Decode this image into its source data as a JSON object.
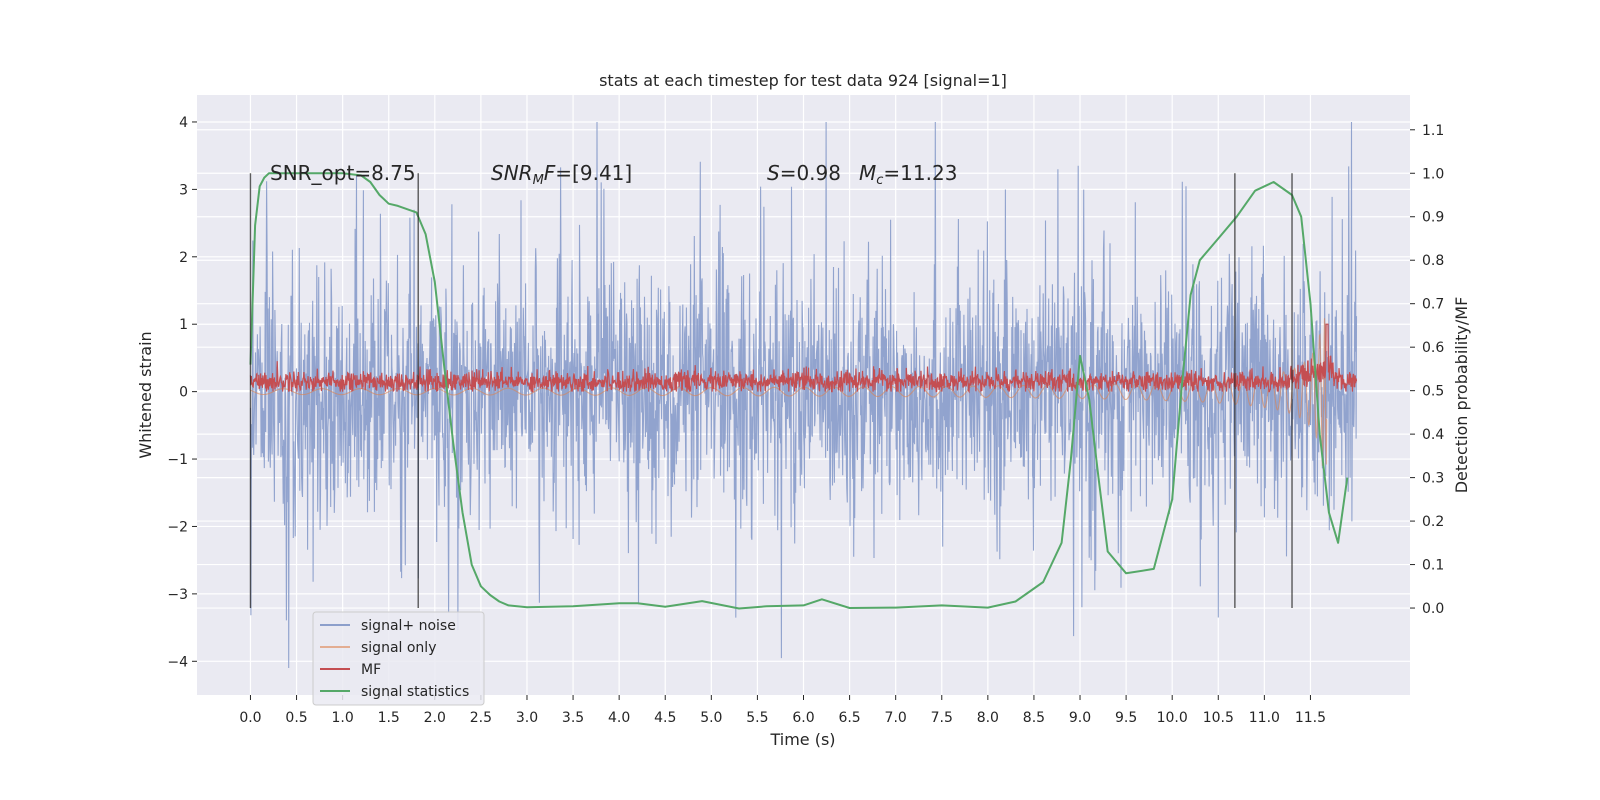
{
  "chart_data": {
    "type": "line",
    "title": "stats at each timestep for test data 924 [signal=1]",
    "xlabel": "Time (s)",
    "ylabel": "Whitened strain",
    "y2label": "Detection probability/MF",
    "xlim": [
      -0.58,
      12.58
    ],
    "ylim": [
      -4.5,
      4.4
    ],
    "y2lim": [
      -0.2,
      1.18
    ],
    "x_ticks": [
      0.0,
      0.5,
      1.0,
      1.5,
      2.0,
      2.5,
      3.0,
      3.5,
      4.0,
      4.5,
      5.0,
      5.5,
      6.0,
      6.5,
      7.0,
      7.5,
      8.0,
      8.5,
      9.0,
      9.5,
      10.0,
      10.5,
      11.0,
      11.5
    ],
    "x_tick_labels": [
      "0.0",
      "0.5",
      "1.0",
      "1.5",
      "2.0",
      "2.5",
      "3.0",
      "3.5",
      "4.0",
      "4.5",
      "5.0",
      "5.5",
      "6.0",
      "6.5",
      "7.0",
      "7.5",
      "8.0",
      "8.5",
      "9.0",
      "9.5",
      "10.0",
      "10.5",
      "11.0",
      "11.5"
    ],
    "y_ticks": [
      4,
      3,
      2,
      1,
      0,
      -1,
      -2,
      -3,
      -4
    ],
    "y_tick_labels": [
      "4",
      "3",
      "2",
      "1",
      "0",
      "−1",
      "−2",
      "−3",
      "−4"
    ],
    "y2_ticks": [
      1.1,
      1.0,
      0.9,
      0.8,
      0.7,
      0.6,
      0.5,
      0.4,
      0.3,
      0.2,
      0.1,
      0.0
    ],
    "y2_tick_labels": [
      "1.1",
      "1.0",
      "0.9",
      "0.8",
      "0.7",
      "0.6",
      "0.5",
      "0.4",
      "0.3",
      "0.2",
      "0.1",
      "0.0"
    ],
    "grid": true,
    "legend_position": "lower-left",
    "colors": {
      "signal_noise": "#8c9fcb",
      "signal_only": "#dd8452",
      "mf": "#c44e52",
      "signal_statistics": "#55a868",
      "vlines": "#262626",
      "background": "#eaeaf2"
    },
    "series": [
      {
        "key": "signal_noise",
        "name": "signal+ noise",
        "axis": "left",
        "t_range": [
          0.0,
          12.0
        ],
        "envelope": [
          2.4,
          -2.4
        ],
        "peaks_max": 4.0,
        "peaks_min": -4.1
      },
      {
        "key": "signal_only",
        "name": "signal only",
        "axis": "left",
        "t_range": [
          0.0,
          11.68
        ],
        "chirp_peak": 1.1,
        "chirp_end": 11.68
      },
      {
        "key": "mf",
        "name": "MF",
        "axis": "left",
        "t_range": [
          0.0,
          12.0
        ],
        "level": 0.15,
        "max": 1.0
      },
      {
        "key": "signal_statistics",
        "name": "signal statistics",
        "axis": "right",
        "x": [
          0.0,
          0.05,
          0.1,
          0.15,
          0.2,
          0.3,
          0.5,
          0.8,
          1.0,
          1.2,
          1.3,
          1.4,
          1.5,
          1.6,
          1.8,
          1.9,
          2.0,
          2.1,
          2.2,
          2.3,
          2.4,
          2.5,
          2.6,
          2.7,
          2.8,
          3.0,
          3.5,
          4.0,
          4.2,
          4.5,
          4.9,
          5.3,
          5.6,
          6.0,
          6.2,
          6.5,
          7.0,
          7.5,
          8.0,
          8.3,
          8.6,
          8.8,
          8.9,
          9.0,
          9.1,
          9.2,
          9.3,
          9.5,
          9.8,
          10.0,
          10.1,
          10.2,
          10.3,
          10.5,
          10.7,
          10.9,
          11.1,
          11.3,
          11.4,
          11.5,
          11.6,
          11.7,
          11.8,
          11.9
        ],
        "y": [
          0.56,
          0.88,
          0.97,
          0.99,
          1.0,
          1.0,
          1.0,
          1.0,
          1.0,
          0.995,
          0.98,
          0.95,
          0.93,
          0.925,
          0.91,
          0.86,
          0.75,
          0.56,
          0.38,
          0.22,
          0.1,
          0.05,
          0.03,
          0.015,
          0.006,
          0.002,
          0.004,
          0.011,
          0.011,
          0.003,
          0.016,
          -0.001,
          0.004,
          0.006,
          0.02,
          0.0,
          0.001,
          0.006,
          0.001,
          0.015,
          0.06,
          0.15,
          0.34,
          0.58,
          0.48,
          0.3,
          0.13,
          0.08,
          0.09,
          0.25,
          0.5,
          0.72,
          0.8,
          0.85,
          0.9,
          0.96,
          0.98,
          0.95,
          0.9,
          0.7,
          0.4,
          0.22,
          0.15,
          0.3
        ]
      }
    ],
    "vlines": [
      0.0,
      1.82,
      10.68,
      11.3
    ],
    "annotations": {
      "snr_opt": "SNR_opt=8.75",
      "snr_mf_main": "SNR",
      "snr_mf_sub": "M",
      "snr_mf_main2": "F",
      "snr_mf_rest": "=[9.41]",
      "s_symbol": "S",
      "s_rest": "=0.98",
      "mc_symbol": "M",
      "mc_sub": "c",
      "mc_rest": "=11.23"
    }
  }
}
